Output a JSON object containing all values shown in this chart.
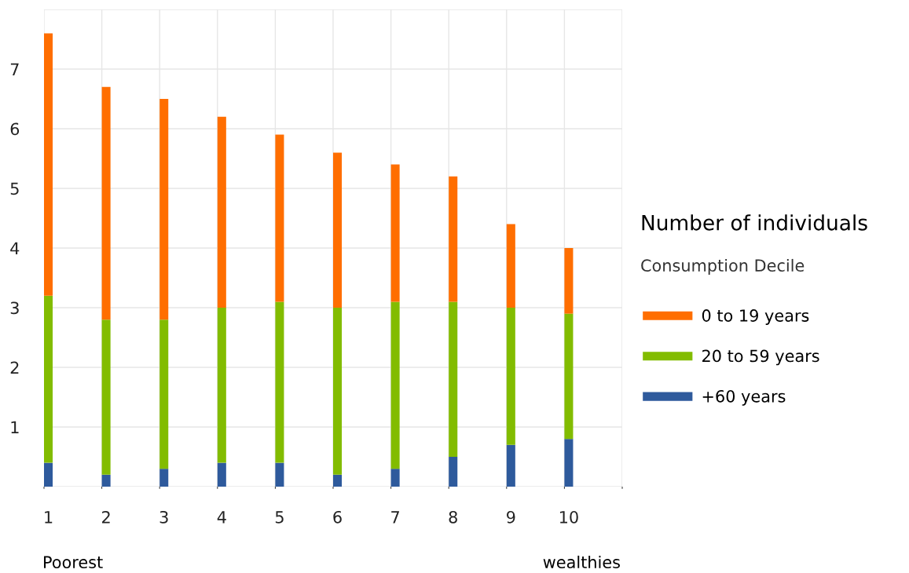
{
  "chart_data": {
    "type": "bar",
    "title": "Number of individuals",
    "subtitle": "Consumption Decile",
    "categories": [
      "1",
      "2",
      "3",
      "4",
      "5",
      "6",
      "7",
      "8",
      "9",
      "10"
    ],
    "stacked": true,
    "series": [
      {
        "name": "+60 years",
        "color": "#2e5a9c",
        "values": [
          0.4,
          0.2,
          0.3,
          0.4,
          0.4,
          0.2,
          0.3,
          0.5,
          0.7,
          0.8
        ]
      },
      {
        "name": "20 to 59 years",
        "color": "#82bc00",
        "values": [
          2.8,
          2.6,
          2.5,
          2.6,
          2.7,
          2.8,
          2.8,
          2.6,
          2.3,
          2.1
        ]
      },
      {
        "name": "0 to 19 years",
        "color": "#ff6e00",
        "values": [
          4.4,
          3.9,
          3.7,
          3.2,
          2.8,
          2.6,
          2.3,
          2.1,
          1.4,
          1.1
        ]
      }
    ],
    "ylim": [
      0,
      8
    ],
    "yticks": [
      {
        "value": 0,
        "label": null
      },
      1,
      2,
      3,
      4,
      5,
      6,
      7,
      {
        "value": 8,
        "label": null
      }
    ],
    "grid": true,
    "legend": "right",
    "annotations": [
      "Poorest",
      "wealthies"
    ]
  }
}
